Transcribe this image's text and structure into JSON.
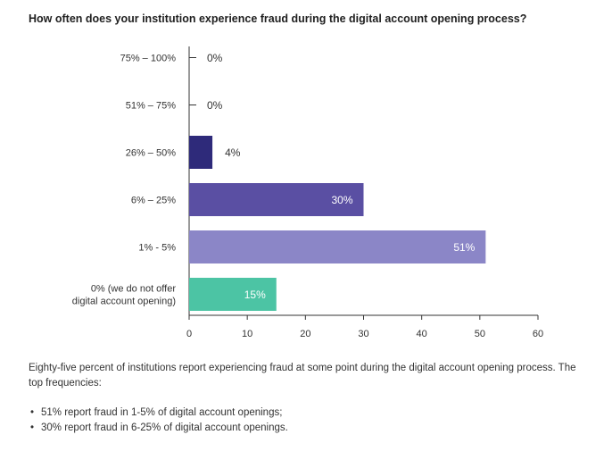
{
  "chart_data": {
    "type": "bar",
    "orientation": "horizontal",
    "title": "How often does your institution experience fraud during the digital account opening process?",
    "categories": [
      "75% – 100%",
      "51% – 75%",
      "26% – 50%",
      "6% – 25%",
      "1% - 5%",
      "0% (we do not offer digital account opening)"
    ],
    "category_lines": [
      [
        "75% – 100%"
      ],
      [
        "51% – 75%"
      ],
      [
        "26% – 50%"
      ],
      [
        "6% – 25%"
      ],
      [
        "1% - 5%"
      ],
      [
        "0% (we do not offer",
        "digital account opening)"
      ]
    ],
    "values": [
      0,
      0,
      4,
      30,
      51,
      15
    ],
    "value_labels": [
      "0%",
      "0%",
      "4%",
      "30%",
      "51%",
      "15%"
    ],
    "colors": [
      "#2e2a7a",
      "#2e2a7a",
      "#2e2a7a",
      "#5a4fa3",
      "#8b86c7",
      "#4cc4a4"
    ],
    "xlim": [
      0,
      60
    ],
    "xticks": [
      0,
      10,
      20,
      30,
      40,
      50,
      60
    ],
    "xlabel": "",
    "ylabel": "",
    "grid": false
  },
  "summary": "Eighty-five percent of institutions report experiencing fraud at some point during the digital account opening process. The top frequencies:",
  "bullets": [
    "51% report fraud in 1-5% of digital account openings;",
    "30% report fraud in 6-25% of digital account openings."
  ]
}
